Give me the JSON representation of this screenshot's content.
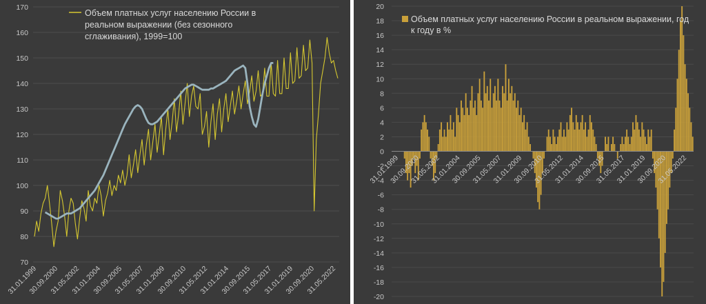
{
  "chart_data": [
    {
      "type": "line",
      "legend_lines": [
        "Объем платных услуг населению России в",
        "реальном выражении (без сезонного",
        "сглаживания), 1999=100"
      ],
      "ylim": [
        70,
        170
      ],
      "y_ticks": [
        "70",
        "80",
        "90",
        "100",
        "110",
        "120",
        "130",
        "140",
        "150",
        "160",
        "170"
      ],
      "x_ticks": [
        "31.01.1999",
        "30.09.2000",
        "31.05.2002",
        "31.01.2004",
        "30.09.2005",
        "31.05.2007",
        "31.01.2009",
        "30.09.2010",
        "31.05.2012",
        "31.01.2014",
        "30.09.2015",
        "31.05.2017",
        "31.01.2019",
        "30.09.2020",
        "31.05.2022"
      ],
      "series": [
        {
          "color": "#d6c830",
          "values": [
            80,
            86,
            82,
            89,
            93,
            95,
            100,
            93,
            85,
            76,
            82,
            86,
            98,
            94,
            88,
            80,
            90,
            95,
            93,
            85,
            79,
            87,
            94,
            91,
            86,
            98,
            92,
            90,
            95,
            93,
            100,
            96,
            88,
            94,
            97,
            102,
            96,
            100,
            98,
            104,
            101,
            106,
            100,
            104,
            112,
            103,
            108,
            114,
            105,
            112,
            118,
            108,
            116,
            122,
            110,
            117,
            124,
            113,
            120,
            127,
            112,
            122,
            130,
            118,
            125,
            134,
            121,
            128,
            137,
            124,
            132,
            140,
            127,
            135,
            139,
            131,
            130,
            136,
            120,
            123,
            129,
            115,
            125,
            132,
            118,
            128,
            134,
            121,
            130,
            136,
            125,
            131,
            137,
            128,
            133,
            139,
            130,
            136,
            141,
            132,
            137,
            143,
            133,
            137,
            145,
            135,
            136,
            146,
            135,
            135,
            148,
            136,
            135,
            149,
            136,
            136,
            150,
            138,
            138,
            152,
            140,
            141,
            154,
            142,
            143,
            155,
            145,
            146,
            157,
            148,
            90,
            118,
            128,
            140,
            145,
            150,
            158,
            152,
            148,
            149,
            145,
            142
          ]
        },
        {
          "color": "#9ab4be",
          "values": [
            null,
            null,
            null,
            null,
            null,
            89.5,
            89,
            88.5,
            88,
            87.5,
            87,
            87,
            87.5,
            88,
            88.5,
            89,
            89,
            89,
            89.5,
            90,
            90.5,
            91,
            92,
            93,
            94,
            95,
            96,
            97,
            98,
            99.5,
            101,
            102.5,
            104,
            106,
            108,
            110,
            112,
            114,
            116,
            118,
            120,
            122,
            124,
            125.5,
            127,
            128.5,
            130,
            131,
            131.5,
            131,
            130,
            128,
            126,
            124.5,
            124,
            124,
            124.5,
            125,
            126,
            127,
            128,
            129,
            130,
            131,
            132,
            133,
            134,
            135,
            136,
            137,
            138,
            138.5,
            139,
            139.5,
            139.5,
            139,
            138.5,
            138,
            137.5,
            137.5,
            137.5,
            137.5,
            138,
            138,
            138.5,
            139,
            139.5,
            140,
            140.5,
            141,
            142,
            143,
            144,
            145,
            145.5,
            146,
            146.5,
            147,
            146,
            140,
            131,
            127,
            124,
            123,
            126,
            131,
            136,
            140,
            143,
            146,
            148,
            148
          ]
        }
      ]
    },
    {
      "type": "bar",
      "legend_lines": [
        "Объем платных услуг населению России в реальном выражении, год",
        "к году в %"
      ],
      "ylim": [
        -20,
        20
      ],
      "y_ticks": [
        "-20",
        "-18",
        "-16",
        "-14",
        "-12",
        "-10",
        "-8",
        "-6",
        "-4",
        "-2",
        "0",
        "2",
        "4",
        "6",
        "8",
        "10",
        "12",
        "14",
        "16",
        "18",
        "20"
      ],
      "x_ticks": [
        "31.01.1999",
        "30.09.2000",
        "31.05.2002",
        "31.01.2004",
        "30.09.2005",
        "31.05.2007",
        "31.01.2009",
        "30.09.2010",
        "31.05.2012",
        "31.01.2014",
        "30.09.2015",
        "31.05.2017",
        "31.01.2019",
        "30.09.2020",
        "31.05.2022"
      ],
      "series": [
        {
          "color": "#c9a03a",
          "values": [
            0,
            0,
            0,
            0,
            0,
            0,
            0,
            0,
            -1,
            -3,
            -4,
            -3,
            -5,
            -2,
            -1,
            -3,
            -2,
            -4,
            -1,
            3,
            4,
            5,
            4,
            3,
            2,
            -1,
            -2,
            -4,
            -3,
            -1,
            1,
            3,
            4,
            2,
            3,
            2,
            4,
            3,
            5,
            3,
            4,
            2,
            6,
            5,
            4,
            7,
            6,
            5,
            8,
            6,
            5,
            7,
            9,
            6,
            7,
            5,
            8,
            10,
            7,
            6,
            11,
            8,
            9,
            7,
            10,
            6,
            8,
            9,
            7,
            10,
            7,
            6,
            9,
            8,
            12,
            7,
            10,
            8,
            9,
            7,
            8,
            6,
            7,
            5,
            6,
            4,
            5,
            3,
            4,
            2,
            1,
            0,
            -1,
            -3,
            -5,
            -7,
            -8,
            -6,
            -3,
            -1,
            0,
            2,
            3,
            2,
            1,
            3,
            2,
            1,
            2,
            3,
            4,
            2,
            3,
            2,
            4,
            3,
            5,
            6,
            4,
            3,
            5,
            4,
            3,
            4,
            5,
            3,
            4,
            2,
            3,
            5,
            4,
            3,
            2,
            1,
            -1,
            -2,
            -3,
            -2,
            0,
            2,
            1,
            2,
            0,
            1,
            2,
            1,
            0,
            -1,
            0,
            1,
            2,
            1,
            2,
            3,
            2,
            1,
            2,
            4,
            3,
            5,
            4,
            3,
            2,
            4,
            3,
            2,
            1,
            3,
            2,
            3,
            -1,
            -3,
            -5,
            -8,
            -12,
            -16,
            -20,
            -18,
            -14,
            -10,
            -8,
            -5,
            -3,
            -1,
            3,
            6,
            10,
            14,
            18,
            20,
            16,
            12,
            10,
            8,
            6,
            4,
            2
          ]
        }
      ]
    }
  ]
}
